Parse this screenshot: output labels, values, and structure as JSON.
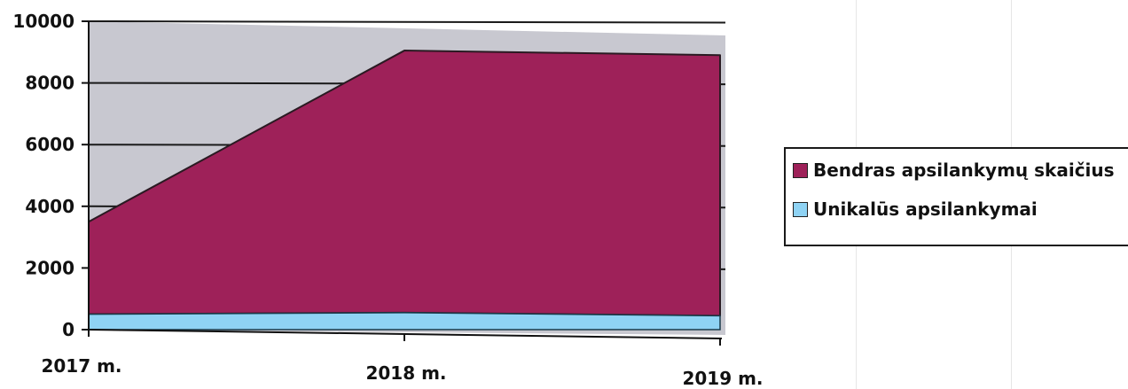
{
  "chart_data": {
    "type": "area",
    "stacked": true,
    "categories": [
      "2017 m.",
      "2018 m.",
      "2019 m."
    ],
    "series": [
      {
        "name": "Unikalūs apsilankymai",
        "values": [
          500,
          550,
          450
        ],
        "color": "#8fd3f4"
      },
      {
        "name": "Bendras apsilankymų skaičius",
        "values": [
          3000,
          8500,
          8450
        ],
        "color": "#9e2159"
      }
    ],
    "y_ticks": [
      "0",
      "2000",
      "4000",
      "6000",
      "8000",
      "10000"
    ],
    "ylim": [
      0,
      10000
    ],
    "plot_background": "#c8c8d0",
    "gridlines": true,
    "legend_position": "right"
  }
}
